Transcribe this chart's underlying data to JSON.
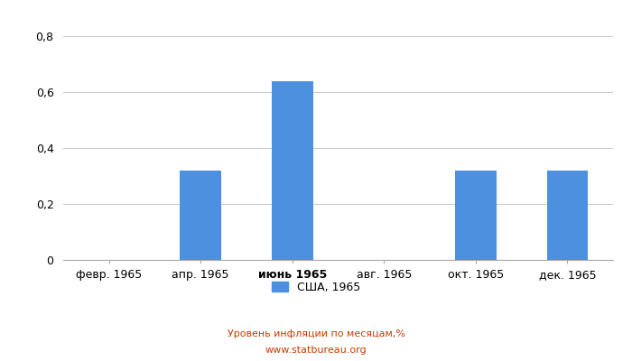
{
  "categories": [
    "февр. 1965",
    "апр. 1965",
    "июнь 1965",
    "авг. 1965",
    "окт. 1965",
    "дек. 1965"
  ],
  "values": [
    0.0,
    0.32,
    0.64,
    0.0,
    0.32,
    0.32
  ],
  "june_index": 2,
  "bar_color": "#4d90e0",
  "bar_width": 0.45,
  "ylim": [
    0,
    0.8
  ],
  "yticks": [
    0,
    0.2,
    0.4,
    0.6,
    0.8
  ],
  "ytick_labels": [
    "0",
    "0,2",
    "0,4",
    "0,6",
    "0,8"
  ],
  "legend_label": "США, 1965",
  "footer_line1": "Уровень инфляции по месяцам,%",
  "footer_line2": "www.statbureau.org",
  "background_color": "#ffffff",
  "grid_color": "#cccccc",
  "tick_fontsize": 9,
  "legend_fontsize": 9,
  "footer_fontsize": 8,
  "footer_color": "#c04000"
}
